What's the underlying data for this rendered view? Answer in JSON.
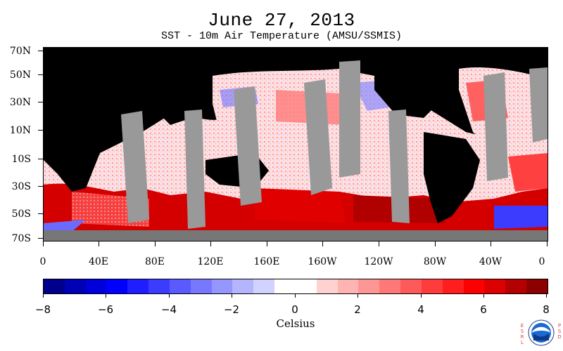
{
  "header": {
    "title": "June 27, 2013",
    "subtitle": "SST - 10m Air Temperature (AMSU/SSMIS)"
  },
  "map": {
    "lat_labels": [
      "70N",
      "50N",
      "30N",
      "10N",
      "10S",
      "30S",
      "50S",
      "70S"
    ],
    "lon_labels": [
      "0",
      "40E",
      "80E",
      "120E",
      "160E",
      "160W",
      "120W",
      "80W",
      "40W",
      "0"
    ],
    "colors": {
      "land": "#000000",
      "no_data": "#999999",
      "warm": "#ff0000",
      "cold": "#0000ff"
    }
  },
  "colorbar": {
    "tick_labels": [
      "−8",
      "−6",
      "−4",
      "−2",
      "0",
      "2",
      "4",
      "6",
      "8"
    ],
    "units": "Celsius",
    "range": [
      -8,
      8
    ],
    "colors": [
      "#00008c",
      "#0000b4",
      "#0000dc",
      "#0000ff",
      "#1e1eff",
      "#3c3cff",
      "#5a5aff",
      "#7878ff",
      "#9696ff",
      "#b4b4ff",
      "#d2d2ff",
      "#ffffff",
      "#ffffff",
      "#ffd2d2",
      "#ffb4b4",
      "#ff9696",
      "#ff7878",
      "#ff5a5a",
      "#ff3c3c",
      "#ff1e1e",
      "#ff0000",
      "#dc0000",
      "#b40000",
      "#8c0000"
    ]
  },
  "logo": {
    "left_text": "ESRL",
    "right_text": "PSD",
    "name": "NOAA"
  }
}
